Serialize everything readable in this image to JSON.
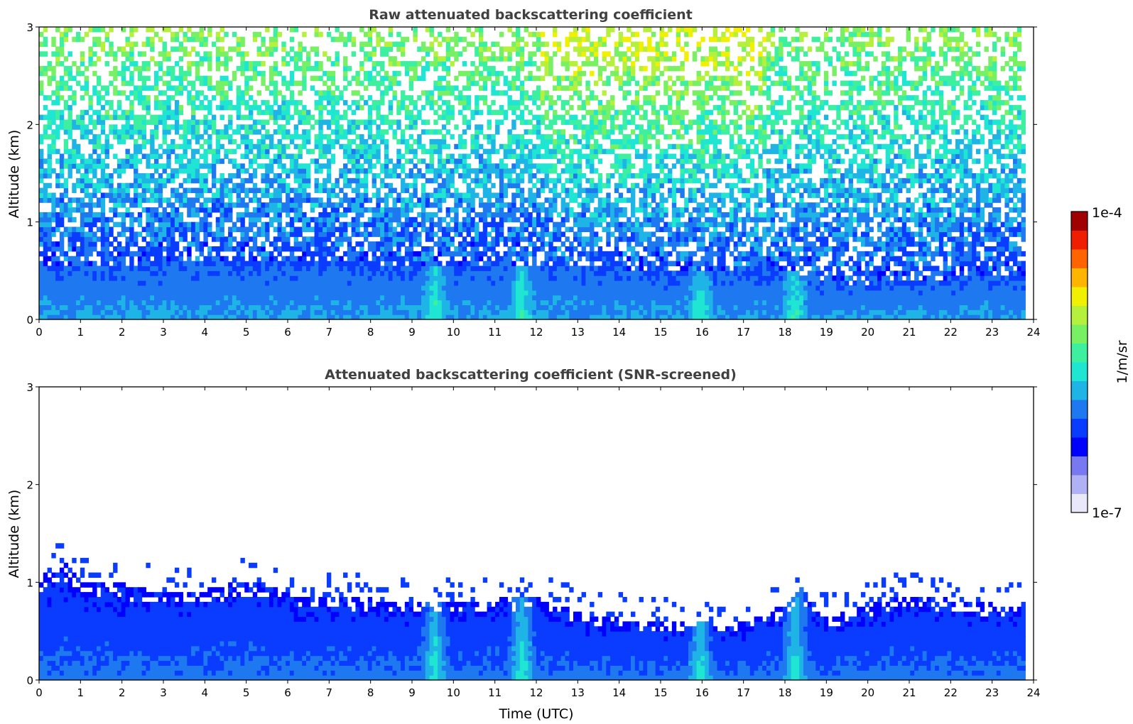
{
  "chart_data": [
    {
      "type": "heatmap",
      "title": "Raw attenuated backscattering coefficient",
      "xlabel": "",
      "ylabel": "Altitude (km)",
      "xlim": [
        0,
        24
      ],
      "ylim": [
        0,
        3
      ],
      "x_ticks": [
        0,
        1,
        2,
        3,
        4,
        5,
        6,
        7,
        8,
        9,
        10,
        11,
        12,
        13,
        14,
        15,
        16,
        17,
        18,
        19,
        20,
        21,
        22,
        23,
        24
      ],
      "y_ticks": [
        0,
        1,
        2,
        3
      ],
      "data_end_time": 23.8,
      "description_values": {
        "boundary_layer_top_km": [
          [
            0,
            0.55
          ],
          [
            2,
            0.55
          ],
          [
            4,
            0.55
          ],
          [
            6,
            0.58
          ],
          [
            8,
            0.55
          ],
          [
            9,
            0.5
          ],
          [
            11,
            0.55
          ],
          [
            12,
            0.55
          ],
          [
            14,
            0.5
          ],
          [
            16,
            0.45
          ],
          [
            18,
            0.5
          ],
          [
            19,
            0.35
          ],
          [
            20,
            0.35
          ],
          [
            22,
            0.4
          ],
          [
            23.8,
            0.45
          ]
        ],
        "signal_noise_above_km": 0.8,
        "high_noise_time_range_utc": [
          12,
          17.5
        ]
      }
    },
    {
      "type": "heatmap",
      "title": "Attenuated backscattering coefficient (SNR-screened)",
      "xlabel": "Time (UTC)",
      "ylabel": "Altitude (km)",
      "xlim": [
        0,
        24
      ],
      "ylim": [
        0,
        3
      ],
      "x_ticks": [
        0,
        1,
        2,
        3,
        4,
        5,
        6,
        7,
        8,
        9,
        10,
        11,
        12,
        13,
        14,
        15,
        16,
        17,
        18,
        19,
        20,
        21,
        22,
        23,
        24
      ],
      "y_ticks": [
        0,
        1,
        2,
        3
      ],
      "data_end_time": 23.8,
      "description_values": {
        "screened_layer_top_km": [
          [
            0,
            1.05
          ],
          [
            0.5,
            1.2
          ],
          [
            1,
            1.0
          ],
          [
            2,
            0.95
          ],
          [
            3,
            0.9
          ],
          [
            4,
            0.9
          ],
          [
            5,
            1.0
          ],
          [
            6,
            0.85
          ],
          [
            7,
            0.85
          ],
          [
            8,
            0.8
          ],
          [
            9,
            0.8
          ],
          [
            10,
            0.8
          ],
          [
            11,
            0.8
          ],
          [
            12,
            0.85
          ],
          [
            13,
            0.65
          ],
          [
            14,
            0.6
          ],
          [
            15,
            0.55
          ],
          [
            16,
            0.6
          ],
          [
            17,
            0.55
          ],
          [
            18,
            0.75
          ],
          [
            18.3,
            0.95
          ],
          [
            19,
            0.6
          ],
          [
            20,
            0.75
          ],
          [
            21,
            0.85
          ],
          [
            22,
            0.8
          ],
          [
            23,
            0.75
          ],
          [
            23.8,
            0.75
          ]
        ],
        "bright_plume_times_utc": [
          9.5,
          11.6,
          15.9,
          18.2
        ]
      }
    }
  ],
  "colorbar": {
    "label": "1/m/sr",
    "max_label": "1e-4",
    "min_label": "1e-7",
    "colors": [
      "#e8e8fa",
      "#b0b0f5",
      "#7878f0",
      "#0000ff",
      "#0a3cff",
      "#1e78f0",
      "#1eb4e6",
      "#1ee6d2",
      "#3cf0a0",
      "#78f064",
      "#b4f03c",
      "#f0f000",
      "#ffb400",
      "#ff6400",
      "#f01e00",
      "#a00000"
    ]
  }
}
